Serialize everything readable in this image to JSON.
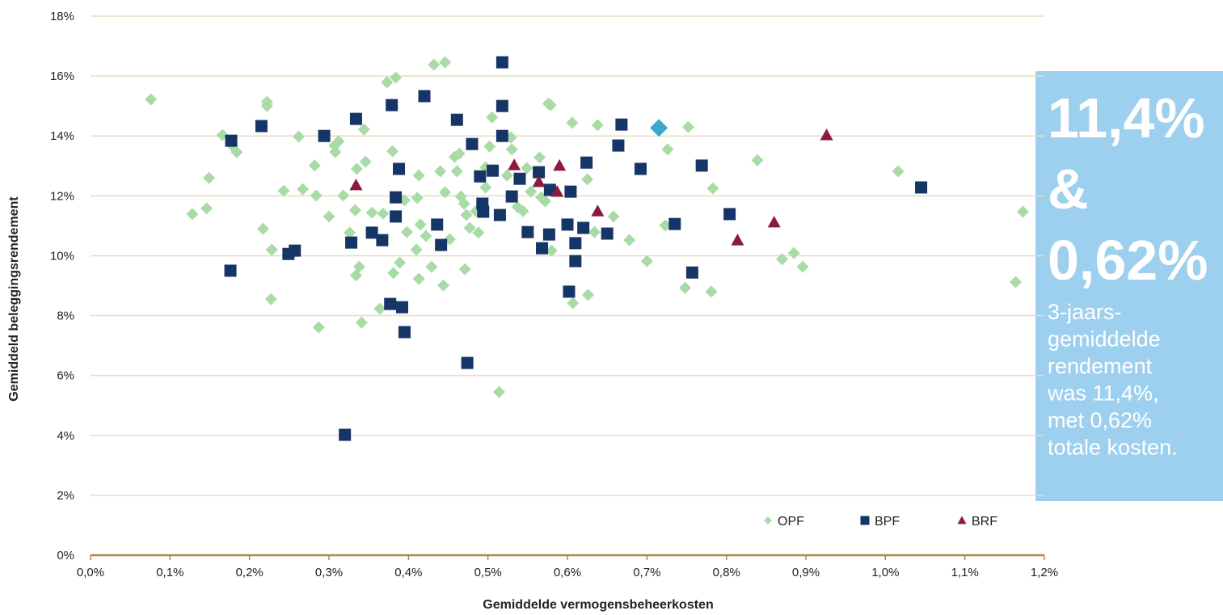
{
  "chart_data": {
    "type": "scatter",
    "xlabel": "Gemiddelde vermogensbeheerkosten",
    "ylabel": "Gemiddeld beleggingsrendement",
    "xlim": [
      0,
      1.2
    ],
    "ylim": [
      0,
      18
    ],
    "xticks": [
      {
        "value": 0,
        "label": "0,0%"
      },
      {
        "value": 0.1,
        "label": "0,1%"
      },
      {
        "value": 0.2,
        "label": "0,2%"
      },
      {
        "value": 0.3,
        "label": "0,3%"
      },
      {
        "value": 0.4,
        "label": "0,4%"
      },
      {
        "value": 0.5,
        "label": "0,5%"
      },
      {
        "value": 0.6,
        "label": "0,6%"
      },
      {
        "value": 0.7,
        "label": "0,7%"
      },
      {
        "value": 0.8,
        "label": "0,8%"
      },
      {
        "value": 0.9,
        "label": "0,9%"
      },
      {
        "value": 1.0,
        "label": "1,0%"
      },
      {
        "value": 1.1,
        "label": "1,1%"
      },
      {
        "value": 1.2,
        "label": "1,2%"
      }
    ],
    "yticks": [
      {
        "value": 0,
        "label": "0%"
      },
      {
        "value": 2,
        "label": "2%"
      },
      {
        "value": 4,
        "label": "4%"
      },
      {
        "value": 6,
        "label": "6%"
      },
      {
        "value": 8,
        "label": "8%"
      },
      {
        "value": 10,
        "label": "10%"
      },
      {
        "value": 12,
        "label": "12%"
      },
      {
        "value": 14,
        "label": "14%"
      },
      {
        "value": 16,
        "label": "16%"
      },
      {
        "value": 18,
        "label": "18%"
      }
    ],
    "grid": true,
    "legend": "bottom-right",
    "series": [
      {
        "name": "OPF",
        "color": "#a9dba6",
        "marker": "diamond",
        "x": [
          0.076,
          0.128,
          0.146,
          0.149,
          0.166,
          0.178,
          0.184,
          0.217,
          0.222,
          0.222,
          0.228,
          0.227,
          0.243,
          0.262,
          0.267,
          0.282,
          0.284,
          0.287,
          0.3,
          0.307,
          0.308,
          0.312,
          0.318,
          0.326,
          0.333,
          0.334,
          0.338,
          0.335,
          0.341,
          0.346,
          0.344,
          0.354,
          0.364,
          0.368,
          0.373,
          0.384,
          0.38,
          0.381,
          0.389,
          0.395,
          0.398,
          0.41,
          0.411,
          0.413,
          0.413,
          0.415,
          0.422,
          0.429,
          0.432,
          0.446,
          0.44,
          0.444,
          0.446,
          0.452,
          0.458,
          0.461,
          0.464,
          0.466,
          0.47,
          0.471,
          0.473,
          0.477,
          0.485,
          0.488,
          0.497,
          0.497,
          0.505,
          0.502,
          0.514,
          0.524,
          0.529,
          0.53,
          0.537,
          0.544,
          0.549,
          0.554,
          0.565,
          0.567,
          0.572,
          0.58,
          0.579,
          0.576,
          0.606,
          0.607,
          0.626,
          0.625,
          0.638,
          0.634,
          0.658,
          0.678,
          0.7,
          0.723,
          0.726,
          0.748,
          0.752,
          0.781,
          0.783,
          0.839,
          0.87,
          0.885,
          0.896,
          1.016,
          1.164,
          1.173
        ],
        "values": [
          15.22,
          11.39,
          11.58,
          12.6,
          14.03,
          13.68,
          13.46,
          10.9,
          15.14,
          15.0,
          10.2,
          8.55,
          12.17,
          13.98,
          12.22,
          13.01,
          12.01,
          7.61,
          11.31,
          13.68,
          13.46,
          13.82,
          12.01,
          10.77,
          11.52,
          9.34,
          9.63,
          12.9,
          7.77,
          13.14,
          14.22,
          11.44,
          8.23,
          11.41,
          15.79,
          15.95,
          13.49,
          9.42,
          9.77,
          11.85,
          10.79,
          10.2,
          11.93,
          12.68,
          9.23,
          11.04,
          10.66,
          9.63,
          16.38,
          16.46,
          12.82,
          9.01,
          12.12,
          10.55,
          13.3,
          12.82,
          13.41,
          11.98,
          11.74,
          9.55,
          11.36,
          10.93,
          11.49,
          10.77,
          12.95,
          12.28,
          14.62,
          13.65,
          5.45,
          12.68,
          13.95,
          13.55,
          11.63,
          11.49,
          12.93,
          12.14,
          13.28,
          11.95,
          11.82,
          10.17,
          15.03,
          15.08,
          14.44,
          8.42,
          8.69,
          12.55,
          14.36,
          10.79,
          11.31,
          10.52,
          9.82,
          11.01,
          13.55,
          8.93,
          14.3,
          8.8,
          12.25,
          13.19,
          9.88,
          10.09,
          9.63,
          12.82,
          9.12,
          11.47
        ]
      },
      {
        "name": "BPF",
        "color": "#163567",
        "marker": "square",
        "x": [
          0.177,
          0.176,
          0.215,
          0.249,
          0.257,
          0.294,
          0.32,
          0.328,
          0.334,
          0.354,
          0.367,
          0.379,
          0.377,
          0.384,
          0.384,
          0.388,
          0.392,
          0.395,
          0.42,
          0.436,
          0.441,
          0.461,
          0.474,
          0.48,
          0.49,
          0.493,
          0.494,
          0.506,
          0.515,
          0.518,
          0.518,
          0.518,
          0.53,
          0.54,
          0.55,
          0.564,
          0.568,
          0.577,
          0.578,
          0.6,
          0.604,
          0.602,
          0.61,
          0.61,
          0.62,
          0.624,
          0.65,
          0.664,
          0.668,
          0.692,
          0.735,
          0.757,
          0.769,
          0.804,
          1.045
        ],
        "values": [
          13.84,
          9.5,
          14.33,
          10.06,
          10.17,
          14.0,
          4.02,
          10.44,
          14.57,
          10.77,
          10.52,
          15.03,
          8.39,
          11.95,
          11.31,
          12.9,
          8.28,
          7.45,
          15.33,
          11.04,
          10.36,
          14.54,
          6.42,
          13.73,
          12.65,
          11.74,
          11.47,
          12.84,
          11.36,
          16.46,
          15.0,
          14.0,
          11.98,
          12.57,
          10.79,
          12.79,
          10.25,
          10.71,
          12.2,
          11.04,
          12.14,
          8.8,
          10.42,
          9.82,
          10.93,
          13.11,
          10.74,
          13.68,
          14.38,
          12.9,
          11.06,
          9.44,
          13.01,
          11.39,
          12.28
        ]
      },
      {
        "name": "BRF",
        "color": "#8c1a40",
        "marker": "triangle",
        "x": [
          0.334,
          0.533,
          0.564,
          0.59,
          0.587,
          0.638,
          0.814,
          0.86,
          0.926
        ],
        "values": [
          12.36,
          13.03,
          12.47,
          13.01,
          12.14,
          11.49,
          10.52,
          11.12,
          14.03
        ]
      }
    ],
    "highlight": {
      "x": 0.715,
      "value": 14.27,
      "color": "#3ba7cc",
      "marker": "diamond"
    },
    "annotation": {
      "headline": [
        "11,4%",
        "&",
        "0,62%"
      ],
      "lines": [
        "3-jaars-",
        "gemiddelde",
        "rendement",
        "was 11,4%,",
        "met 0,62%",
        "totale kosten."
      ]
    }
  }
}
